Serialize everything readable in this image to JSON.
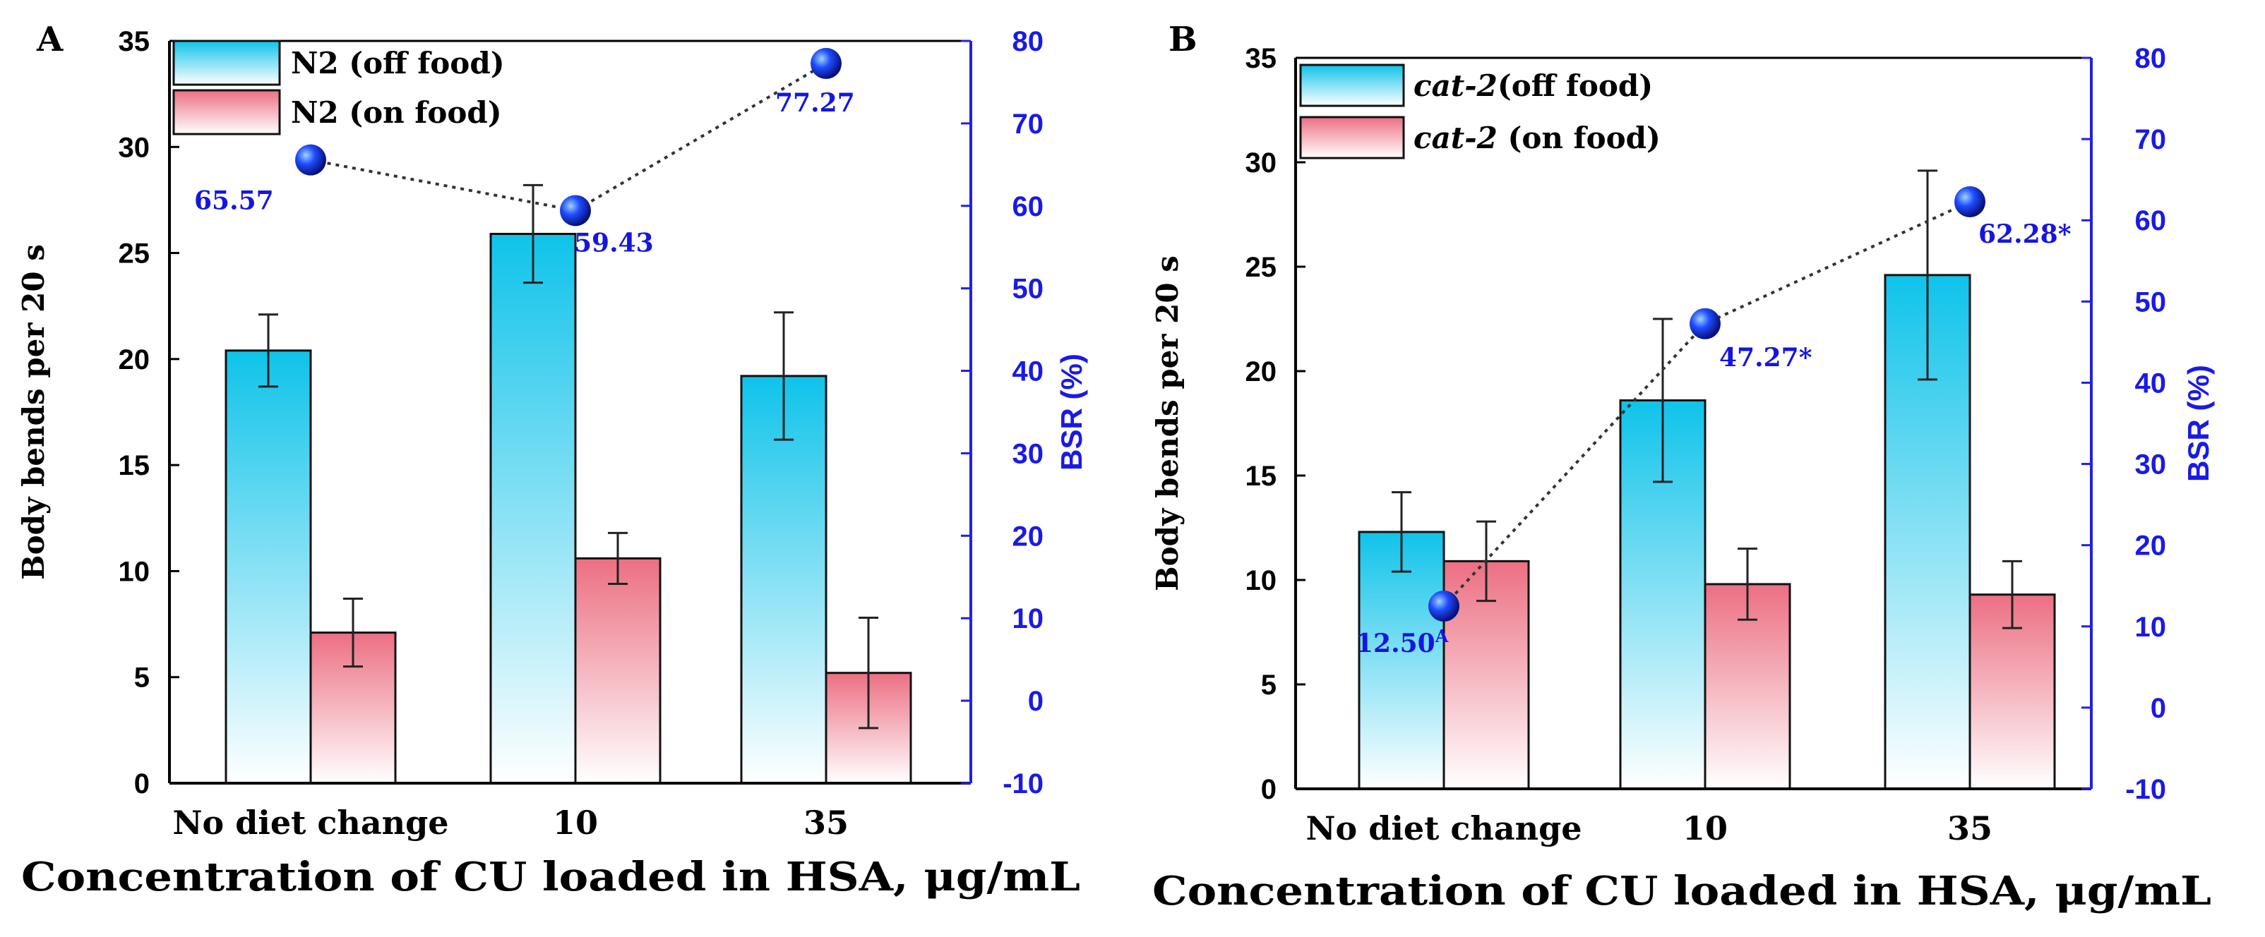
{
  "chart_data": [
    {
      "panel_label": "A",
      "type": "bar",
      "categories": [
        "No diet change",
        "10",
        "35"
      ],
      "xlabel": "Concentration of CU loaded in HSA, μg/mL",
      "ylabel": "Body  bends per 20 s",
      "y2label": "BSR (%)",
      "ylim": [
        0,
        35
      ],
      "yticks": [
        0,
        5,
        10,
        15,
        20,
        25,
        30,
        35
      ],
      "y2lim": [
        -10,
        80
      ],
      "y2ticks": [
        -10,
        0,
        10,
        20,
        30,
        40,
        50,
        60,
        70,
        80
      ],
      "series": [
        {
          "name_prefix": "N2",
          "name_suffix": " (off food)",
          "values": [
            20.4,
            25.9,
            19.2
          ],
          "errors": [
            1.7,
            2.3,
            3.0
          ],
          "color": "#1ec8ea"
        },
        {
          "name_prefix": "N2",
          "name_suffix": " (on food)",
          "values": [
            7.1,
            10.6,
            5.2
          ],
          "errors": [
            1.6,
            1.2,
            2.6
          ],
          "color": "#ee8090"
        }
      ],
      "line_series": {
        "name": "BSR",
        "values": [
          65.57,
          59.43,
          77.27
        ],
        "labels": [
          "65.57",
          "59.43",
          "77.27"
        ],
        "color": "#1515e0"
      }
    },
    {
      "panel_label": "B",
      "type": "bar",
      "categories": [
        "No diet change",
        "10",
        "35"
      ],
      "xlabel": "Concentration of CU loaded in HSA, μg/mL",
      "ylabel": "Body  bends per 20 s",
      "y2label": "BSR (%)",
      "ylim": [
        0,
        35
      ],
      "yticks": [
        0,
        5,
        10,
        15,
        20,
        25,
        30,
        35
      ],
      "y2lim": [
        -10,
        80
      ],
      "y2ticks": [
        -10,
        0,
        10,
        20,
        30,
        40,
        50,
        60,
        70,
        80
      ],
      "series": [
        {
          "name_prefix": "cat-2",
          "name_suffix": "(off food)",
          "values": [
            12.3,
            18.6,
            24.6
          ],
          "errors": [
            1.9,
            3.9,
            5.0
          ],
          "color": "#1ec8ea"
        },
        {
          "name_prefix": "cat-2",
          "name_suffix": " (on food)",
          "values": [
            10.9,
            9.8,
            9.3
          ],
          "errors": [
            1.9,
            1.7,
            1.6
          ],
          "color": "#ee8090"
        }
      ],
      "line_series": {
        "name": "BSR",
        "values": [
          12.5,
          47.27,
          62.28
        ],
        "labels": [
          "12.50",
          "47.27*",
          "62.28*"
        ],
        "label_sups": [
          "A",
          "",
          ""
        ],
        "color": "#1515e0"
      }
    }
  ]
}
